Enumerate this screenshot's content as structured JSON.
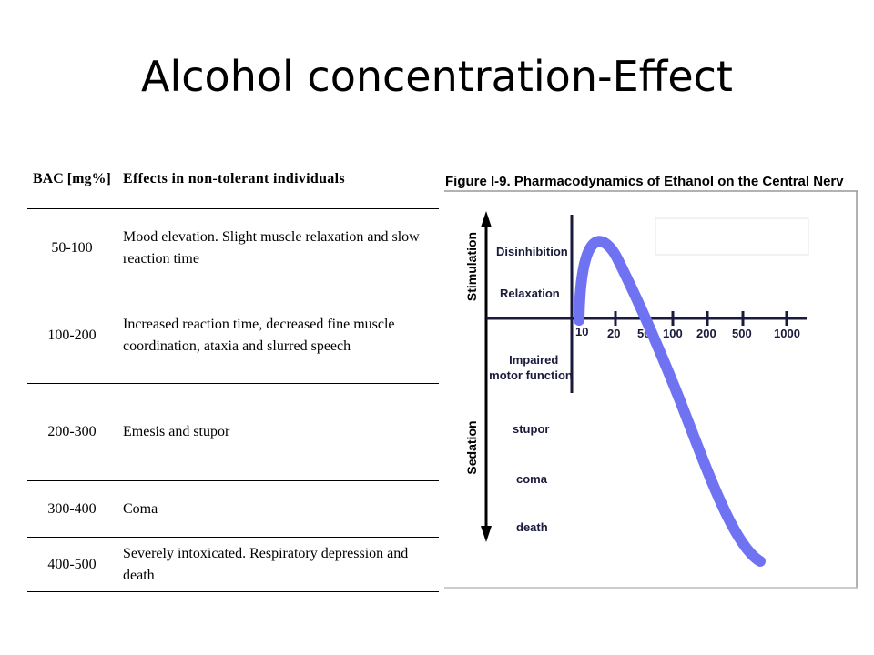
{
  "slide": {
    "title": "Alcohol concentration-Effect"
  },
  "table": {
    "headers": [
      "BAC [mg%]",
      "Effects in non-tolerant individuals"
    ],
    "rows": [
      {
        "bac": "50-100",
        "effect": "Mood elevation. Slight muscle relaxation and slow reaction time"
      },
      {
        "bac": "100-200",
        "effect": "Increased reaction time, decreased fine muscle coordination, ataxia and slurred speech"
      },
      {
        "bac": "200-300",
        "effect": "Emesis and stupor"
      },
      {
        "bac": "300-400",
        "effect": "Coma"
      },
      {
        "bac": "400-500",
        "effect": "Severely intoxicated. Respiratory depression and death"
      }
    ]
  },
  "figure": {
    "caption": "Figure I-9.  Pharmacodynamics of Ethanol on the Central Nerv",
    "axis_upper_label": "Stimulation",
    "axis_lower_label": "Sedation",
    "upper_effects": [
      "Disinhibition",
      "Relaxation"
    ],
    "lower_effects": [
      "Impaired motor function",
      "stupor",
      "coma",
      "death"
    ],
    "x_ticks": [
      "10",
      "20",
      "50",
      "100",
      "200",
      "500",
      "1000"
    ],
    "curve_color": "#6f73f2"
  }
}
